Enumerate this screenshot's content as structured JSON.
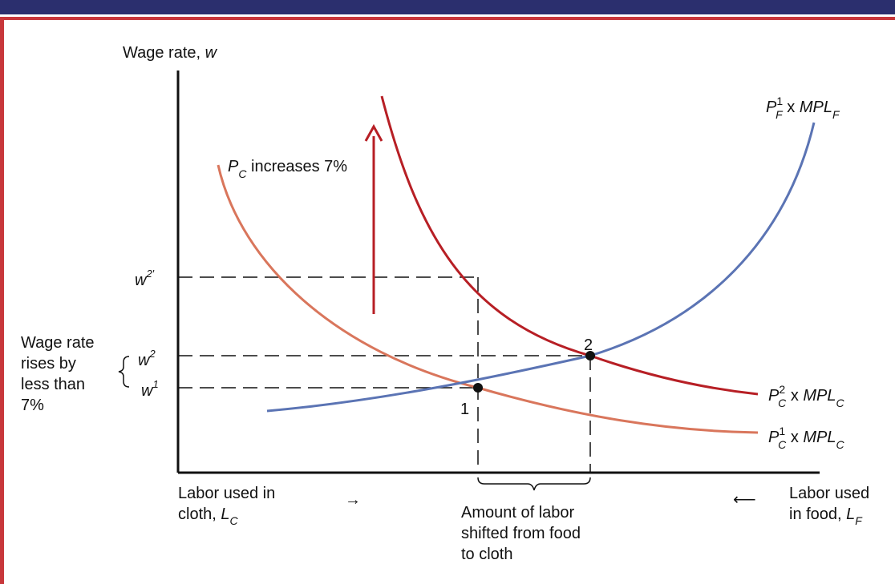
{
  "axis": {
    "y_label_main": "Wage rate, ",
    "y_label_var": "w"
  },
  "annotations": {
    "shift_label_p": "P",
    "shift_label_sub": "C",
    "shift_label_rest": " increases 7%",
    "brace_note_lines": [
      "Wage rate",
      "rises by",
      "less than",
      "7%"
    ]
  },
  "wage_ticks": {
    "w2p_base": "w",
    "w2p_sup": "2′",
    "w2_base": "w",
    "w2_sup": "2",
    "w1_base": "w",
    "w1_sup": "1"
  },
  "points": {
    "p1": "1",
    "p2": "2"
  },
  "curves": {
    "food": {
      "P": "P",
      "sup": "1",
      "sub": "F",
      "mid": " x ",
      "MPL": "MPL",
      "tail": "F"
    },
    "cloth2": {
      "P": "P",
      "sup": "2",
      "sub": "C",
      "mid": " x ",
      "MPL": "MPL",
      "tail": "C"
    },
    "cloth1": {
      "P": "P",
      "sup": "1",
      "sub": "C",
      "mid": " x ",
      "MPL": "MPL",
      "tail": "C"
    }
  },
  "x_labels": {
    "left_line1": "Labor used in",
    "left_line2": "cloth, ",
    "left_L": "L",
    "left_sub": "C",
    "right_line1": "Labor used",
    "right_line2": "in food, ",
    "right_L": "L",
    "right_sub": "F",
    "left_arrow": "→",
    "right_arrow": "⟵",
    "shifted_lines": [
      "Amount of labor",
      "shifted from food",
      "to cloth"
    ]
  },
  "colors": {
    "food_curve": "#5b74b4",
    "cloth_curve_new": "#b71f25",
    "cloth_curve_old": "#d9765c",
    "frame_top": "#2b2f6e",
    "frame_accent": "#c8373b"
  }
}
